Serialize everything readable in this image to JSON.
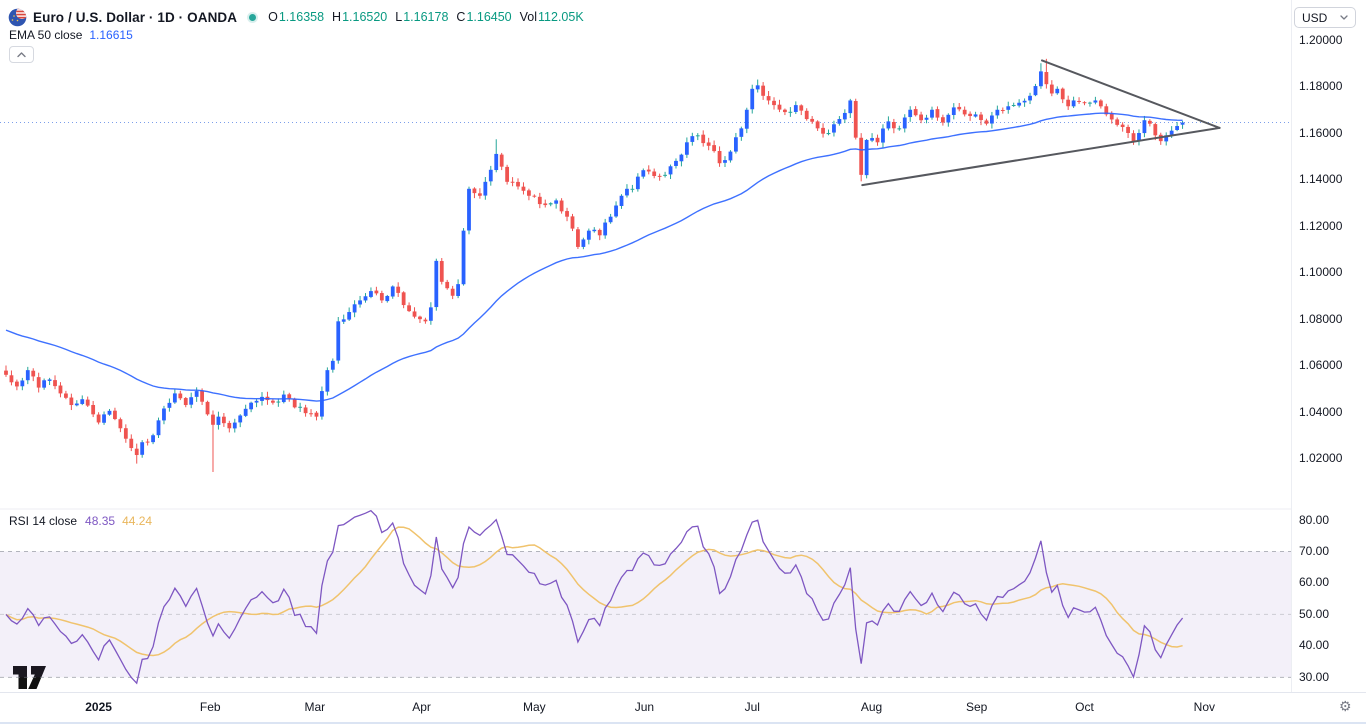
{
  "header": {
    "title": "Euro / U.S. Dollar · 1D · OANDA",
    "ohlc": {
      "o_label": "O",
      "o": "1.16358",
      "h_label": "H",
      "h": "1.16520",
      "l_label": "L",
      "l": "1.16178",
      "c_label": "C",
      "c": "1.16450",
      "vol_label": "Vol",
      "vol": "112.05K"
    },
    "ema_legend": {
      "label": "EMA 50 close",
      "value": "1.16615"
    }
  },
  "rsi_legend": {
    "label": "RSI 14 close",
    "rsi_value": "48.35",
    "ma_value": "44.24"
  },
  "currency_selector": {
    "label": "USD"
  },
  "icons": {
    "pair_logo": "eurusd-pair-icon",
    "status": "market-status-dot",
    "collapse": "chevron-up-icon",
    "currency_dropdown": "chevron-down-icon",
    "timezone_settings": "gear-icon",
    "watermark": "tradingview-logo"
  },
  "colors": {
    "up_body": "#2962FF",
    "up_wick": "#26A69A",
    "down_body": "#EF5350",
    "down_wick": "#EF5350",
    "ema": "#2962FF",
    "rsi": "#7E57C2",
    "rsi_ma": "#F0C36D",
    "rsi_band": "rgba(126,87,194,0.09)",
    "level_line": "#787B86",
    "trendline": "#56585E",
    "dotted_price_line": "#5B86E5",
    "axis_text": "#131722",
    "value_text_up": "#089981",
    "separator": "#ECEEF3"
  },
  "chart_data": {
    "type": "candlestick",
    "symbol": "EUR/USD",
    "interval": "1D",
    "exchange": "OANDA",
    "price_pane": {
      "y_axis_ticks": [
        "1.20000",
        "1.18000",
        "1.16000",
        "1.14000",
        "1.12000",
        "1.10000",
        "1.08000",
        "1.06000",
        "1.04000",
        "1.02000"
      ],
      "visible_price_range": [
        1.012,
        1.205
      ],
      "last_candle": {
        "open": 1.16358,
        "high": 1.1652,
        "low": 1.16178,
        "close": 1.1645,
        "volume": "112.05K"
      },
      "ema50_last": 1.16615,
      "last_price_line": 1.1645,
      "num_candles": 217,
      "price_anchors": [
        [
          0,
          1.056
        ],
        [
          2,
          1.051
        ],
        [
          4,
          1.058
        ],
        [
          6,
          1.0505
        ],
        [
          8,
          1.054
        ],
        [
          10,
          1.048
        ],
        [
          12,
          1.043
        ],
        [
          14,
          1.0455
        ],
        [
          16,
          1.039
        ],
        [
          17,
          1.0355
        ],
        [
          19,
          1.0405
        ],
        [
          21,
          1.033
        ],
        [
          23,
          1.0245
        ],
        [
          24,
          1.0215
        ],
        [
          25,
          1.027
        ],
        [
          27,
          1.03
        ],
        [
          29,
          1.0415
        ],
        [
          31,
          1.048
        ],
        [
          33,
          1.043
        ],
        [
          35,
          1.049
        ],
        [
          37,
          1.039
        ],
        [
          38,
          1.0345
        ],
        [
          39,
          1.038
        ],
        [
          41,
          1.033
        ],
        [
          43,
          1.0385
        ],
        [
          45,
          1.044
        ],
        [
          47,
          1.0465
        ],
        [
          49,
          1.044
        ],
        [
          51,
          1.0475
        ],
        [
          53,
          1.042
        ],
        [
          55,
          1.0395
        ],
        [
          57,
          1.038
        ],
        [
          58,
          1.049
        ],
        [
          59,
          1.058
        ],
        [
          60,
          1.062
        ],
        [
          61,
          1.079
        ],
        [
          63,
          1.083
        ],
        [
          65,
          1.088
        ],
        [
          67,
          1.092
        ],
        [
          69,
          1.088
        ],
        [
          71,
          1.094
        ],
        [
          73,
          1.086
        ],
        [
          75,
          1.081
        ],
        [
          77,
          1.079
        ],
        [
          78,
          1.085
        ],
        [
          79,
          1.105
        ],
        [
          80,
          1.096
        ],
        [
          82,
          1.09
        ],
        [
          83,
          1.095
        ],
        [
          84,
          1.118
        ],
        [
          85,
          1.136
        ],
        [
          87,
          1.133
        ],
        [
          88,
          1.139
        ],
        [
          90,
          1.151
        ],
        [
          92,
          1.139
        ],
        [
          94,
          1.137
        ],
        [
          96,
          1.133
        ],
        [
          99,
          1.129
        ],
        [
          101,
          1.131
        ],
        [
          103,
          1.124
        ],
        [
          105,
          1.111
        ],
        [
          107,
          1.118
        ],
        [
          109,
          1.116
        ],
        [
          111,
          1.124
        ],
        [
          113,
          1.133
        ],
        [
          115,
          1.136
        ],
        [
          117,
          1.144
        ],
        [
          119,
          1.1415
        ],
        [
          121,
          1.142
        ],
        [
          123,
          1.148
        ],
        [
          125,
          1.156
        ],
        [
          127,
          1.159
        ],
        [
          129,
          1.1545
        ],
        [
          131,
          1.147
        ],
        [
          133,
          1.152
        ],
        [
          135,
          1.162
        ],
        [
          136,
          1.17
        ],
        [
          137,
          1.179
        ],
        [
          138,
          1.1805
        ],
        [
          139,
          1.176
        ],
        [
          141,
          1.172
        ],
        [
          143,
          1.169
        ],
        [
          145,
          1.172
        ],
        [
          147,
          1.166
        ],
        [
          149,
          1.162
        ],
        [
          151,
          1.16
        ],
        [
          153,
          1.166
        ],
        [
          155,
          1.174
        ],
        [
          156,
          1.158
        ],
        [
          157,
          1.142
        ],
        [
          158,
          1.157
        ],
        [
          160,
          1.156
        ],
        [
          162,
          1.165
        ],
        [
          164,
          1.162
        ],
        [
          166,
          1.17
        ],
        [
          168,
          1.1655
        ],
        [
          170,
          1.17
        ],
        [
          172,
          1.1645
        ],
        [
          174,
          1.171
        ],
        [
          176,
          1.168
        ],
        [
          178,
          1.168
        ],
        [
          180,
          1.164
        ],
        [
          182,
          1.17
        ],
        [
          184,
          1.1715
        ],
        [
          186,
          1.173
        ],
        [
          188,
          1.176
        ],
        [
          190,
          1.1865
        ],
        [
          191,
          1.181
        ],
        [
          192,
          1.177
        ],
        [
          193,
          1.179
        ],
        [
          194,
          1.1745
        ],
        [
          195,
          1.1715
        ],
        [
          196,
          1.174
        ],
        [
          197,
          1.1735
        ],
        [
          198,
          1.173
        ],
        [
          200,
          1.174
        ],
        [
          202,
          1.168
        ],
        [
          204,
          1.1635
        ],
        [
          206,
          1.16
        ],
        [
          207,
          1.1565
        ],
        [
          208,
          1.16
        ],
        [
          209,
          1.1655
        ],
        [
          210,
          1.164
        ],
        [
          211,
          1.159
        ],
        [
          212,
          1.1565
        ],
        [
          213,
          1.159
        ],
        [
          214,
          1.161
        ],
        [
          215,
          1.163
        ],
        [
          216,
          1.1645
        ]
      ],
      "extremes": [
        {
          "day": 24,
          "low": 1.0178
        },
        {
          "day": 38,
          "low": 1.0142
        },
        {
          "day": 90,
          "high": 1.1573
        },
        {
          "day": 138,
          "high": 1.183
        },
        {
          "day": 157,
          "low": 1.1392
        },
        {
          "day": 190,
          "high": 1.19
        },
        {
          "day": 191,
          "high": 1.1919
        },
        {
          "day": 216,
          "o": 1.16358,
          "h": 1.1652,
          "l": 1.16178,
          "c": 1.1645
        }
      ],
      "trendlines": [
        {
          "name": "upper",
          "from_day": 190.2,
          "from_price": 1.1912,
          "to_day": 222.8,
          "to_price": 1.1622
        },
        {
          "name": "lower",
          "from_day": 157.2,
          "from_price": 1.1376,
          "to_day": 222.8,
          "to_price": 1.1622
        }
      ]
    },
    "rsi_pane": {
      "y_axis_ticks": [
        "80.00",
        "70.00",
        "60.00",
        "50.00",
        "40.00",
        "30.00"
      ],
      "levels": [
        70,
        50,
        30
      ],
      "band": [
        30,
        70
      ],
      "rsi_last": 48.35,
      "rsi_ma_last": 44.24
    },
    "time_axis": {
      "labels": [
        {
          "label": "2025",
          "day": 17,
          "bold": true
        },
        {
          "label": "Feb",
          "day": 37.5
        },
        {
          "label": "Mar",
          "day": 56.7
        },
        {
          "label": "Apr",
          "day": 76.3
        },
        {
          "label": "May",
          "day": 97
        },
        {
          "label": "Jun",
          "day": 117.2
        },
        {
          "label": "Jul",
          "day": 137
        },
        {
          "label": "Aug",
          "day": 158.9
        },
        {
          "label": "Sep",
          "day": 178.2
        },
        {
          "label": "Oct",
          "day": 198
        },
        {
          "label": "Nov",
          "day": 220
        }
      ]
    }
  }
}
